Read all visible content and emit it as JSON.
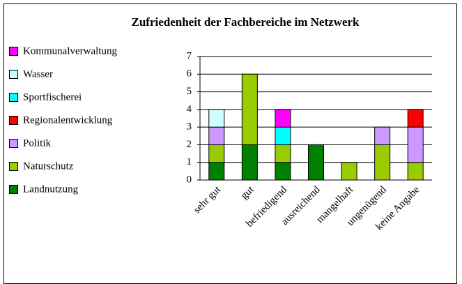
{
  "chart_data": {
    "type": "stacked_bar",
    "title": "Zufriedenheit der Fachbereiche im Netzwerk",
    "categories": [
      "sehr gut",
      "gut",
      "befriedigend",
      "ausreichend",
      "mangelhaft",
      "ungenügend",
      "keine Angabe"
    ],
    "series": [
      {
        "name": "Landnutzung",
        "color": "#008000",
        "values": [
          1,
          2,
          1,
          2,
          0,
          0,
          0
        ]
      },
      {
        "name": "Naturschutz",
        "color": "#99cc00",
        "values": [
          1,
          4,
          1,
          0,
          1,
          2,
          1
        ]
      },
      {
        "name": "Politik",
        "color": "#cc99ff",
        "values": [
          1,
          0,
          0,
          0,
          0,
          1,
          2
        ]
      },
      {
        "name": "Regionalentwicklung",
        "color": "#ff0000",
        "values": [
          0,
          0,
          0,
          0,
          0,
          0,
          1
        ]
      },
      {
        "name": "Sportfischerei",
        "color": "#00ffff",
        "values": [
          0,
          0,
          1,
          0,
          0,
          0,
          0
        ]
      },
      {
        "name": "Wasser",
        "color": "#ccffff",
        "values": [
          1,
          0,
          0,
          0,
          0,
          0,
          0
        ]
      },
      {
        "name": "Kommunalverwaltung",
        "color": "#ff00ff",
        "values": [
          0,
          0,
          1,
          0,
          0,
          0,
          0
        ]
      }
    ],
    "ylim": [
      0,
      7
    ],
    "yticks": [
      0,
      1,
      2,
      3,
      4,
      5,
      6,
      7
    ],
    "grid": true,
    "legend": "left"
  }
}
